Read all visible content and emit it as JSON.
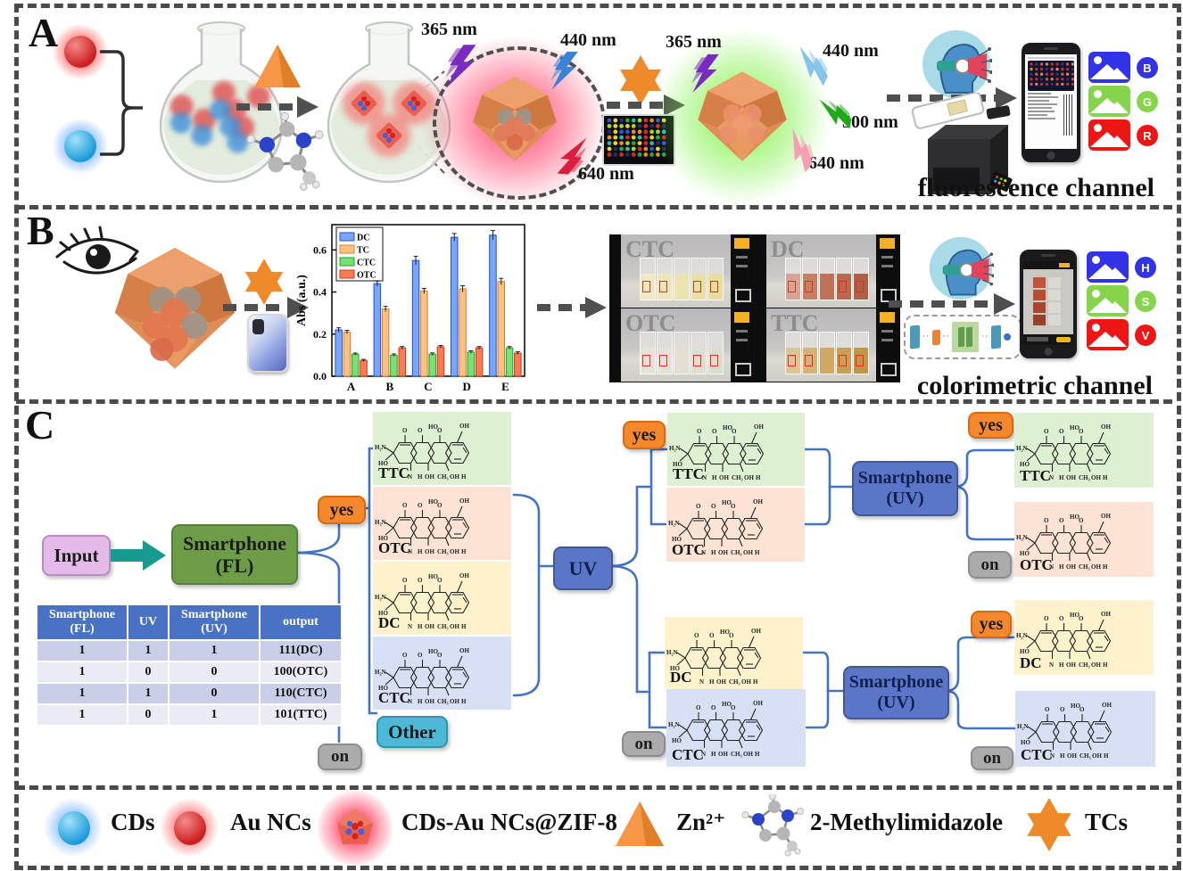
{
  "panel_a": {
    "label": "A",
    "wl_365_left": "365 nm",
    "wl_440_left": "440 nm",
    "wl_640_left": "640 nm",
    "wl_365_right": "365 nm",
    "wl_440_right": "440 nm",
    "wl_500_right": "500 nm",
    "wl_640_right": "640 nm",
    "channel_label": "fluorescence channel",
    "rgb": [
      {
        "letter": "B",
        "color": "#3232e6"
      },
      {
        "letter": "G",
        "color": "#86d34c"
      },
      {
        "letter": "R",
        "color": "#ee1515"
      }
    ]
  },
  "panel_b": {
    "label": "B",
    "channel_label": "colorimetric channel",
    "hsv": [
      {
        "letter": "H",
        "color": "#3232e6"
      },
      {
        "letter": "S",
        "color": "#86d34c"
      },
      {
        "letter": "V",
        "color": "#ee1515"
      }
    ],
    "photos": [
      {
        "label": "CTC",
        "cuvettes": [
          "#efe9c6",
          "#ede6ba",
          "#ebe3b0",
          "#e9e0a6",
          "#e7dd9c"
        ]
      },
      {
        "label": "DC",
        "cuvettes": [
          "#d8a394",
          "#c87e62",
          "#c07157",
          "#ba684d",
          "#b26045"
        ]
      },
      {
        "label": "OTC",
        "cuvettes": [
          "#e7e3d9",
          "#e5e1d6",
          "#e3dfd3",
          "#e1ddd0",
          "#dfdbcd"
        ]
      },
      {
        "label": "TTC",
        "cuvettes": [
          "#dec395",
          "#d5b276",
          "#cfa863",
          "#c99f55",
          "#c29647"
        ]
      }
    ]
  },
  "chart_data": {
    "type": "bar",
    "title": "",
    "xlabel": "",
    "ylabel": "Abs (a.u.)",
    "categories": [
      "A",
      "B",
      "C",
      "D",
      "E"
    ],
    "series": [
      {
        "name": "DC",
        "color": "#7aa6f7",
        "edge": "#1f4fd8",
        "values": [
          0.22,
          0.44,
          0.55,
          0.66,
          0.67
        ],
        "errors": [
          0.01,
          0.012,
          0.02,
          0.018,
          0.022
        ]
      },
      {
        "name": "TC",
        "color": "#fac184",
        "edge": "#e07b28",
        "values": [
          0.21,
          0.32,
          0.405,
          0.415,
          0.45
        ],
        "errors": [
          0.008,
          0.012,
          0.012,
          0.015,
          0.015
        ]
      },
      {
        "name": "CTC",
        "color": "#7ede76",
        "edge": "#1fa32a",
        "values": [
          0.105,
          0.1,
          0.105,
          0.115,
          0.135
        ],
        "errors": [
          0.005,
          0.006,
          0.006,
          0.006,
          0.006
        ]
      },
      {
        "name": "OTC",
        "color": "#fa7a52",
        "edge": "#d8341f",
        "values": [
          0.075,
          0.135,
          0.14,
          0.135,
          0.11
        ],
        "errors": [
          0.005,
          0.006,
          0.006,
          0.006,
          0.006
        ]
      }
    ],
    "ylim": [
      0,
      0.72
    ],
    "yticks": [
      "0.0",
      "0.2",
      "0.4",
      "0.6"
    ],
    "legend_position": "upper-left",
    "grid": false
  },
  "panel_c": {
    "label": "C",
    "input_label": "Input",
    "smartphone_fl": [
      "Smartphone",
      "(FL)"
    ],
    "uv_label": "UV",
    "smartphone_uv": [
      "Smartphone",
      "(UV)"
    ],
    "yes_label": "yes",
    "on_label": "on",
    "other_label": "Other",
    "table": {
      "headers": [
        "Smartphone (FL)",
        "UV",
        "Smartphone (UV)",
        "output"
      ],
      "rows": [
        [
          "1",
          "1",
          "1",
          "111(DC)"
        ],
        [
          "1",
          "0",
          "0",
          "100(OTC)"
        ],
        [
          "1",
          "1",
          "0",
          "110(CTC)"
        ],
        [
          "1",
          "0",
          "1",
          "101(TTC)"
        ]
      ],
      "header_bg": "#4a72c4",
      "row_bg_odd": "#c9cfe8",
      "row_bg_even": "#e9ebf5"
    },
    "structures": {
      "ttc": {
        "label": "TTC",
        "bg": "#def0d2"
      },
      "otc": {
        "label": "OTC",
        "bg": "#fce3d3"
      },
      "dc": {
        "label": "DC",
        "bg": "#fdf2cb"
      },
      "ctc": {
        "label": "CTC",
        "bg": "#d7e0f4"
      }
    },
    "atom_labels": {
      "h2n": "H₂N",
      "ho": "HO",
      "o": "O",
      "oh": "OH",
      "ch3": "CH₃",
      "n": "N",
      "h": "H"
    }
  },
  "legend": {
    "items": [
      {
        "label": "CDs",
        "icon": "cds-sphere"
      },
      {
        "label": "Au NCs",
        "icon": "aunc-sphere"
      },
      {
        "label": "CDs-Au NCs@ZIF-8",
        "icon": "zif-particle"
      },
      {
        "label": "Zn²⁺",
        "icon": "zn-tetrahedron"
      },
      {
        "label": "2-Methylimidazole",
        "icon": "methylimidazole-molecule"
      },
      {
        "label": "TCs",
        "icon": "tcs-star"
      }
    ]
  },
  "colors": {
    "accent_orange": "#f5882d",
    "box_green": "#6d9e47",
    "box_blue": "#5b76c9",
    "box_pink": "#e3bbe9",
    "box_cyan": "#4cb9d6",
    "box_gray": "#ababab",
    "bracket_blue": "#4472c4",
    "arrow_teal": "#169b90",
    "dash_gray": "#4a4a4a"
  }
}
